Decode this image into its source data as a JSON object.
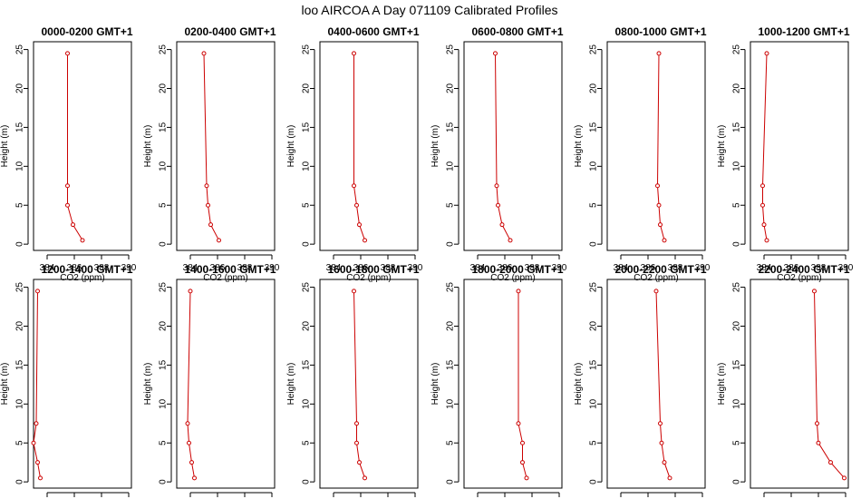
{
  "chart_data": {
    "type": "line",
    "title": "loo AIRCOA A  Day 071109  Calibrated Profiles",
    "xlabel": "CO2 (ppm)",
    "ylabel": "Height (m)",
    "xlim": [
      383,
      390.2
    ],
    "ylim": [
      0,
      25
    ],
    "x_ticks": [
      384,
      386,
      388,
      390
    ],
    "y_ticks": [
      0,
      5,
      10,
      15,
      20,
      25
    ],
    "heights": [
      0.5,
      2.5,
      5,
      7.5,
      24.5
    ],
    "series_color": "#cc0000",
    "grid": false,
    "panels": [
      {
        "title": "0000-0200 GMT+1",
        "co2": [
          386.6,
          385.9,
          385.5,
          385.5,
          385.5
        ]
      },
      {
        "title": "0200-0400 GMT+1",
        "co2": [
          386.1,
          385.5,
          385.3,
          385.2,
          385.0
        ]
      },
      {
        "title": "0400-0600 GMT+1",
        "co2": [
          386.3,
          385.9,
          385.7,
          385.5,
          385.5
        ]
      },
      {
        "title": "0600-0800 GMT+1",
        "co2": [
          386.4,
          385.8,
          385.5,
          385.4,
          385.3
        ]
      },
      {
        "title": "0800-1000 GMT+1",
        "co2": [
          387.2,
          386.9,
          386.8,
          386.7,
          386.8
        ]
      },
      {
        "title": "1000-1200 GMT+1",
        "co2": [
          384.2,
          384.0,
          383.9,
          383.9,
          384.2
        ]
      },
      {
        "title": "1200-1400 GMT+1",
        "co2": [
          383.5,
          383.3,
          383.0,
          383.2,
          383.3
        ]
      },
      {
        "title": "1400-1600 GMT+1",
        "co2": [
          384.3,
          384.1,
          383.9,
          383.8,
          384.0
        ]
      },
      {
        "title": "1600-1800 GMT+1",
        "co2": [
          386.3,
          385.9,
          385.7,
          385.7,
          385.5
        ]
      },
      {
        "title": "1800-2000 GMT+1",
        "co2": [
          387.6,
          387.3,
          387.3,
          387.0,
          387.0
        ]
      },
      {
        "title": "2000-2200 GMT+1",
        "co2": [
          387.6,
          387.2,
          387.0,
          386.9,
          386.6
        ]
      },
      {
        "title": "2200-2400 GMT+1",
        "co2": [
          389.9,
          388.9,
          388.0,
          387.9,
          387.7
        ]
      }
    ]
  }
}
